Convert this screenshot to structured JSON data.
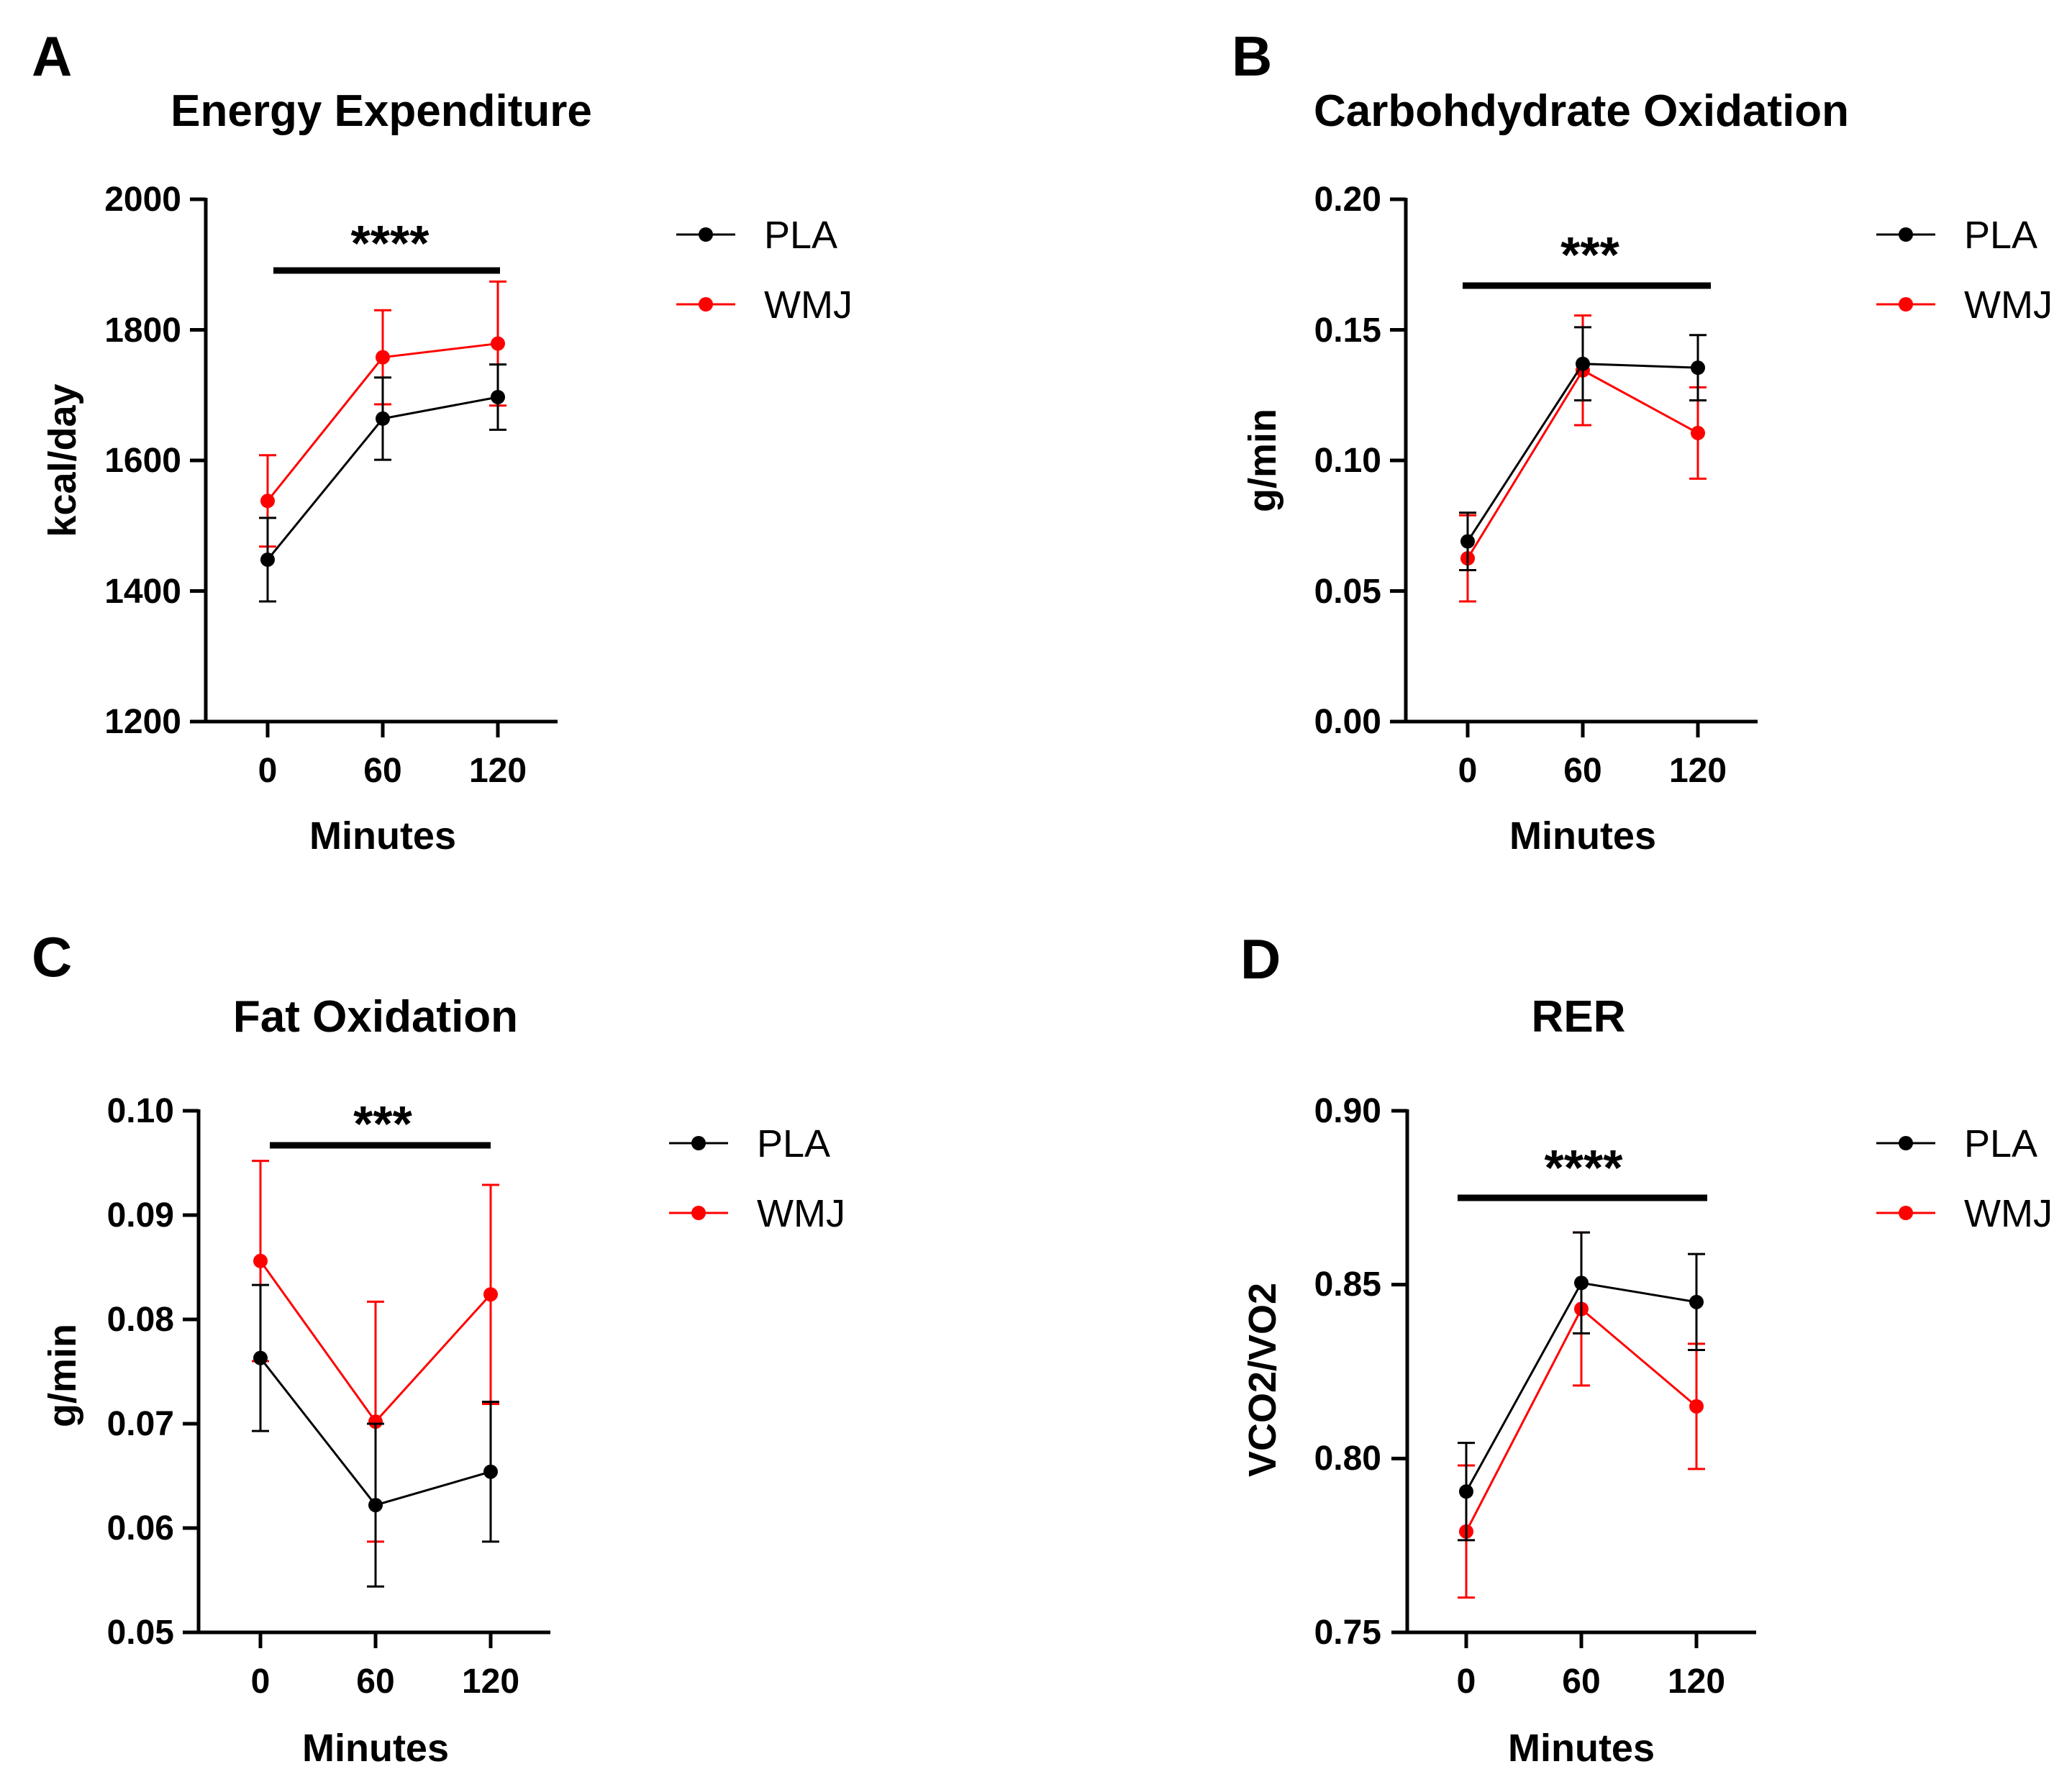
{
  "figure": {
    "colors": {
      "PLA": "#000000",
      "WMJ": "#ff0000"
    }
  },
  "chart_data": [
    {
      "panel": "A",
      "type": "line",
      "title": "Energy Expenditure",
      "xlabel": "Minutes",
      "ylabel": "kcal/day",
      "x": [
        0,
        60,
        120
      ],
      "x_ticks": [
        "0",
        "60",
        "120"
      ],
      "ylim": [
        1200,
        2000
      ],
      "y_ticks": [
        "1200",
        "1400",
        "1600",
        "1800",
        "2000"
      ],
      "series": [
        {
          "name": "PLA",
          "values": [
            1448,
            1664,
            1697
          ],
          "errors": [
            64,
            63,
            50
          ]
        },
        {
          "name": "WMJ",
          "values": [
            1538,
            1758,
            1779
          ],
          "errors": [
            70,
            72,
            95
          ]
        }
      ],
      "significance": {
        "stars": "****",
        "from": 0,
        "to": 120
      },
      "legend": {
        "labels": [
          "PLA",
          "WMJ"
        ],
        "position": "right"
      }
    },
    {
      "panel": "B",
      "type": "line",
      "title": "Carbohdydrate Oxidation",
      "xlabel": "Minutes",
      "ylabel": "g/min",
      "x": [
        0,
        60,
        120
      ],
      "x_ticks": [
        "0",
        "60",
        "120"
      ],
      "ylim": [
        0,
        0.2
      ],
      "y_ticks": [
        "0.00",
        "0.05",
        "0.10",
        "0.15",
        "0.20"
      ],
      "series": [
        {
          "name": "PLA",
          "values": [
            0.069,
            0.137,
            0.1355
          ],
          "errors": [
            0.011,
            0.014,
            0.0125
          ]
        },
        {
          "name": "WMJ",
          "values": [
            0.0625,
            0.1345,
            0.1105
          ],
          "errors": [
            0.0165,
            0.021,
            0.0175
          ]
        }
      ],
      "significance": {
        "stars": "***",
        "from": 0,
        "to": 120
      },
      "legend": {
        "labels": [
          "PLA",
          "WMJ"
        ],
        "position": "right"
      }
    },
    {
      "panel": "C",
      "type": "line",
      "title": "Fat Oxidation",
      "xlabel": "Minutes",
      "ylabel": "g/min",
      "x": [
        0,
        60,
        120
      ],
      "x_ticks": [
        "0",
        "60",
        "120"
      ],
      "ylim": [
        0.05,
        0.1
      ],
      "y_ticks": [
        "0.05",
        "0.06",
        "0.07",
        "0.08",
        "0.09",
        "0.10"
      ],
      "series": [
        {
          "name": "PLA",
          "values": [
            0.0763,
            0.0622,
            0.0654
          ],
          "errors": [
            0.007,
            0.0078,
            0.0067
          ]
        },
        {
          "name": "WMJ",
          "values": [
            0.0856,
            0.0702,
            0.0824
          ],
          "errors": [
            0.0096,
            0.0115,
            0.0105
          ]
        }
      ],
      "significance": {
        "stars": "***",
        "from": 0,
        "to": 120
      },
      "legend": {
        "labels": [
          "PLA",
          "WMJ"
        ],
        "position": "right"
      }
    },
    {
      "panel": "D",
      "type": "line",
      "title": "RER",
      "xlabel": "Minutes",
      "ylabel": "VCO2/VO2",
      "x": [
        0,
        60,
        120
      ],
      "x_ticks": [
        "0",
        "60",
        "120"
      ],
      "ylim": [
        0.75,
        0.9
      ],
      "y_ticks": [
        "0.75",
        "0.80",
        "0.85",
        "0.90"
      ],
      "series": [
        {
          "name": "PLA",
          "values": [
            0.7905,
            0.8505,
            0.845
          ],
          "errors": [
            0.014,
            0.0145,
            0.0138
          ]
        },
        {
          "name": "WMJ",
          "values": [
            0.779,
            0.843,
            0.815
          ],
          "errors": [
            0.019,
            0.022,
            0.018
          ]
        }
      ],
      "significance": {
        "stars": "****",
        "from": 0,
        "to": 120
      },
      "legend": {
        "labels": [
          "PLA",
          "WMJ"
        ],
        "position": "right"
      }
    }
  ]
}
